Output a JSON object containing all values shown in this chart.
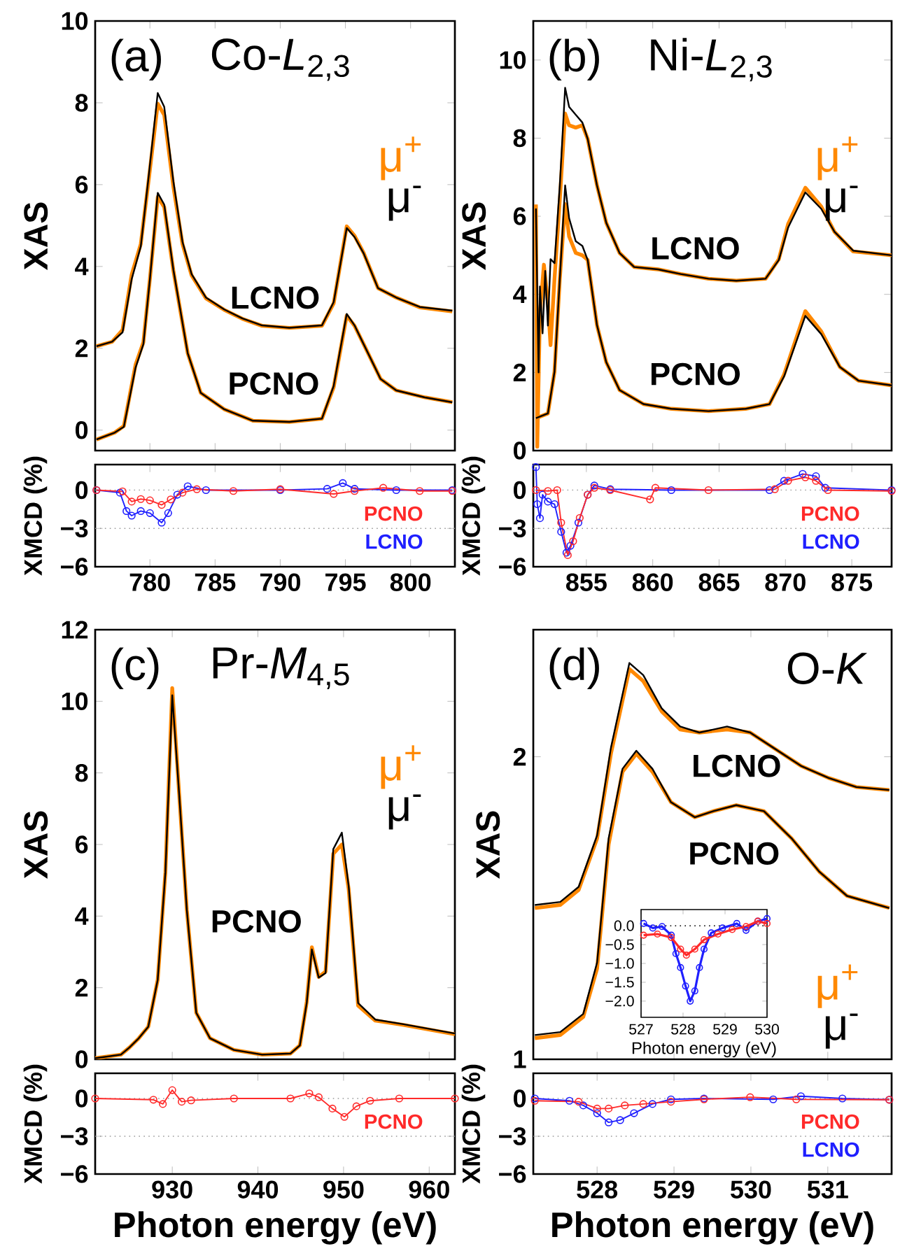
{
  "chart_data": [
    {
      "type": "line",
      "title": "Co-*L*$_{2,3}$",
      "ylabel": "XAS",
      "xlim": [
        775.8,
        803.4
      ],
      "ylim": [
        -0.5,
        10
      ],
      "xticks": [
        780,
        785,
        790,
        795,
        800
      ],
      "yticks": [
        0,
        2,
        4,
        6,
        8,
        10
      ],
      "tick_labels": "y",
      "legend": "right",
      "annotations": [
        "(a)",
        "LCNO",
        "PCNO"
      ],
      "series": [
        {
          "name": "μ$^{+}$",
          "color": "#ff8800",
          "x": [
            775.9,
            777.1,
            777.9,
            778.6,
            779.3,
            779.9,
            780.6,
            781.1,
            781.8,
            782.5,
            783.2,
            784.3,
            785.7,
            787.1,
            788.6,
            790.7,
            793.2,
            794.1,
            795.1,
            795.7,
            796.4,
            797.5,
            798.9,
            800.7,
            803.2
          ],
          "values": [
            2.05,
            2.16,
            2.45,
            3.8,
            4.55,
            6.1,
            7.98,
            7.7,
            5.95,
            4.55,
            3.78,
            3.22,
            2.94,
            2.72,
            2.55,
            2.5,
            2.55,
            3.1,
            4.98,
            4.75,
            4.33,
            3.47,
            3.24,
            3.0,
            2.9
          ]
        },
        {
          "name": "μ$^{-}$",
          "color": "#000000",
          "x": [
            775.9,
            777.1,
            777.9,
            778.6,
            779.3,
            779.9,
            780.6,
            781.1,
            781.8,
            782.5,
            783.2,
            784.3,
            785.7,
            787.1,
            788.6,
            790.7,
            793.2,
            794.1,
            795.1,
            795.7,
            796.4,
            797.5,
            798.9,
            800.7,
            803.2
          ],
          "values": [
            2.05,
            2.16,
            2.39,
            3.69,
            4.49,
            6.19,
            8.24,
            7.9,
            6.08,
            4.6,
            3.81,
            3.24,
            2.95,
            2.73,
            2.56,
            2.5,
            2.56,
            3.13,
            4.94,
            4.72,
            4.32,
            3.47,
            3.24,
            3.01,
            2.92
          ]
        },
        {
          "color": "#ff8800",
          "x": [
            775.9,
            777.3,
            778.0,
            778.9,
            779.5,
            780.0,
            780.6,
            781.1,
            781.8,
            782.9,
            783.9,
            785.7,
            787.9,
            790.7,
            793.2,
            794.1,
            795.1,
            795.7,
            796.4,
            797.7,
            798.9,
            801.1,
            803.2
          ],
          "values": [
            -0.23,
            -0.06,
            0.1,
            1.6,
            2.15,
            3.7,
            5.7,
            5.45,
            3.9,
            1.88,
            0.91,
            0.51,
            0.23,
            0.2,
            0.28,
            1.05,
            2.8,
            2.55,
            2.1,
            1.25,
            0.97,
            0.8,
            0.68
          ]
        },
        {
          "color": "#000000",
          "x": [
            775.9,
            777.3,
            778.0,
            778.9,
            779.5,
            780.0,
            780.6,
            781.1,
            781.8,
            782.9,
            783.9,
            785.7,
            787.9,
            790.7,
            793.2,
            794.1,
            795.1,
            795.7,
            796.4,
            797.7,
            798.9,
            801.1,
            803.2
          ],
          "values": [
            -0.23,
            -0.06,
            0.08,
            1.53,
            2.1,
            3.69,
            5.8,
            5.51,
            3.92,
            1.88,
            0.91,
            0.51,
            0.23,
            0.2,
            0.28,
            1.08,
            2.84,
            2.56,
            2.1,
            1.25,
            0.97,
            0.8,
            0.68
          ]
        }
      ]
    },
    {
      "type": "line",
      "ylabel": "XMCD (%)",
      "xlim": [
        775.8,
        803.4
      ],
      "ylim": [
        -6,
        2
      ],
      "xticks": [
        780,
        785,
        790,
        795,
        800
      ],
      "yticks": [
        0,
        {
          "value": -3,
          "label": "−3"
        },
        {
          "value": -6,
          "label": "−6"
        }
      ],
      "legend": "right",
      "marker": "circle",
      "ref_lines": [
        {
          "axis": "y",
          "value": 0,
          "color": "#999999",
          "line_style": "dotted"
        },
        {
          "axis": "y",
          "value": -3,
          "color": "#999999",
          "line_style": "dotted"
        }
      ],
      "series": [
        {
          "name": "PCNO",
          "color": "#ff2a2a",
          "x": [
            775.9,
            777.9,
            778.6,
            779.3,
            780.0,
            780.9,
            781.6,
            782.5,
            783.6,
            786.4,
            790.0,
            794.1,
            795.7,
            797.9,
            800.7,
            803.2
          ],
          "values": [
            0,
            -0.1,
            -0.9,
            -0.7,
            -0.8,
            -1.16,
            -0.73,
            -0.2,
            0.07,
            -0.07,
            0.07,
            -0.3,
            -0.07,
            0.18,
            -0.07,
            -0.07
          ]
        },
        {
          "name": "LCNO",
          "color": "#1f1fff",
          "x": [
            775.9,
            777.7,
            778.2,
            778.6,
            779.3,
            780.0,
            780.9,
            781.4,
            782.1,
            782.9,
            784.3,
            790.0,
            793.6,
            794.8,
            795.7,
            798.9,
            803.2
          ],
          "values": [
            0,
            -0.2,
            -1.64,
            -2.0,
            -1.64,
            -1.8,
            -2.55,
            -1.8,
            -0.36,
            0.3,
            0,
            0,
            0.1,
            0.55,
            0.1,
            0,
            0
          ]
        }
      ]
    },
    {
      "type": "line",
      "title": "Ni-*L*$_{2,3}$",
      "ylabel": "XAS",
      "xlim": [
        851,
        878
      ],
      "ylim": [
        0,
        11
      ],
      "xticks": [
        855,
        860,
        865,
        870,
        875
      ],
      "yticks": [
        0,
        2,
        4,
        6,
        8,
        10
      ],
      "tick_labels": "y",
      "legend": "right",
      "annotations": [
        "(b)",
        "LCNO",
        "PCNO"
      ],
      "series": [
        {
          "name": "μ$^{+}$",
          "color": "#ff8800",
          "x": [
            851.2,
            851.3,
            851.5,
            851.8,
            852.1,
            852.3,
            852.6,
            853.0,
            853.4,
            853.7,
            854.2,
            854.7,
            855.1,
            855.8,
            856.5,
            857.5,
            858.6,
            860.4,
            862.1,
            864.2,
            866.3,
            868.5,
            869.5,
            870.2,
            871.5,
            872.7,
            873.7,
            875.1,
            878.0
          ],
          "values": [
            6.3,
            0.1,
            3.5,
            4.76,
            3.8,
            2.7,
            4.4,
            6.43,
            8.63,
            8.33,
            8.27,
            8.33,
            7.98,
            6.79,
            5.83,
            5.06,
            4.7,
            4.64,
            4.52,
            4.4,
            4.35,
            4.4,
            4.9,
            5.8,
            6.73,
            6.25,
            5.6,
            5.1,
            5.0
          ]
        },
        {
          "name": "μ$^{-}$",
          "color": "#000000",
          "x": [
            851.2,
            851.4,
            851.5,
            851.7,
            851.9,
            852.1,
            852.3,
            852.6,
            853.0,
            853.4,
            853.7,
            854.2,
            854.7,
            855.1,
            855.8,
            856.5,
            857.5,
            858.6,
            860.4,
            862.1,
            864.2,
            866.3,
            868.5,
            869.5,
            870.2,
            871.5,
            872.7,
            873.7,
            875.1,
            878.0
          ],
          "values": [
            6.2,
            2.0,
            4.2,
            3.0,
            4.6,
            3.2,
            4.9,
            4.8,
            6.8,
            9.29,
            8.8,
            8.6,
            8.4,
            7.98,
            6.79,
            5.83,
            5.06,
            4.7,
            4.64,
            4.52,
            4.4,
            4.35,
            4.4,
            4.88,
            5.71,
            6.61,
            6.19,
            5.6,
            5.12,
            5.0
          ]
        },
        {
          "color": "#ff8800",
          "x": [
            851.2,
            852.1,
            852.6,
            853.0,
            853.4,
            853.7,
            854.2,
            854.7,
            855.1,
            855.8,
            856.5,
            857.5,
            859.3,
            861.4,
            864.2,
            867.0,
            868.8,
            869.9,
            871.5,
            872.7,
            874.1,
            875.5,
            878.0
          ],
          "values": [
            0.83,
            0.95,
            2.02,
            4.4,
            6.31,
            5.48,
            5.06,
            5.0,
            4.88,
            3.21,
            2.26,
            1.55,
            1.19,
            1.07,
            1.01,
            1.07,
            1.19,
            1.95,
            3.57,
            3.05,
            2.14,
            1.79,
            1.67
          ]
        },
        {
          "color": "#000000",
          "x": [
            851.2,
            852.1,
            852.6,
            853.0,
            853.4,
            853.7,
            854.2,
            854.7,
            855.1,
            855.8,
            856.5,
            857.5,
            859.3,
            861.4,
            864.2,
            867.0,
            868.8,
            869.9,
            871.5,
            872.7,
            874.1,
            875.5,
            878.0
          ],
          "values": [
            0.83,
            0.95,
            2.02,
            4.4,
            6.79,
            5.95,
            5.36,
            5.24,
            4.88,
            3.21,
            2.26,
            1.55,
            1.19,
            1.07,
            1.01,
            1.07,
            1.19,
            1.9,
            3.45,
            2.98,
            2.14,
            1.79,
            1.67
          ]
        }
      ]
    },
    {
      "type": "line",
      "ylabel": "XMCD (%)",
      "xlim": [
        851,
        878
      ],
      "ylim": [
        -6,
        2
      ],
      "xticks": [
        855,
        860,
        865,
        870,
        875
      ],
      "yticks": [
        0,
        {
          "value": -3,
          "label": "−3"
        },
        {
          "value": -6,
          "label": "−6"
        }
      ],
      "legend": "right",
      "marker": "circle",
      "ref_lines": [
        {
          "axis": "y",
          "value": 0,
          "color": "#999999",
          "line_style": "dotted"
        },
        {
          "axis": "y",
          "value": -3,
          "color": "#999999",
          "line_style": "dotted"
        }
      ],
      "series": [
        {
          "name": "PCNO",
          "color": "#ff2a2a",
          "x": [
            851.2,
            852.1,
            852.8,
            853.1,
            853.6,
            854.0,
            854.5,
            855.1,
            855.6,
            856.8,
            859.8,
            860.2,
            864.2,
            869.2,
            870.2,
            871.5,
            872.3,
            873.2,
            878.0
          ],
          "values": [
            0,
            -0.07,
            0,
            -2.55,
            -5.09,
            -4.0,
            -2.18,
            -0.36,
            0.18,
            0,
            -0.73,
            0.18,
            0,
            0.07,
            0.73,
            1.0,
            0.73,
            0,
            -0.07
          ]
        },
        {
          "name": "LCNO",
          "color": "#1f1fff",
          "x": [
            851.2,
            851.3,
            851.5,
            851.7,
            852.1,
            852.6,
            853.1,
            853.5,
            853.8,
            854.4,
            855.1,
            855.6,
            856.8,
            861.4,
            868.8,
            869.9,
            871.3,
            872.3,
            873.0,
            878.0
          ],
          "values": [
            1.8,
            -1.1,
            -2.2,
            -0.36,
            -0.9,
            -1.1,
            -3.27,
            -4.9,
            -4.36,
            -2.55,
            -0.36,
            0.36,
            0.07,
            0,
            0,
            0.73,
            1.27,
            1.09,
            0.18,
            0
          ]
        }
      ]
    },
    {
      "type": "line",
      "title": "Pr-*M*$_{4,5}$",
      "ylabel": "XAS",
      "xlim": [
        921,
        963
      ],
      "ylim": [
        0,
        12
      ],
      "xticks": [
        930,
        940,
        950,
        960
      ],
      "yticks": [
        0,
        2,
        4,
        6,
        8,
        10,
        12
      ],
      "tick_labels": "y",
      "legend": "right",
      "annotations": [
        "(c)",
        "PCNO"
      ],
      "series": [
        {
          "name": "μ$^{+}$",
          "color": "#ff8800",
          "x": [
            921.0,
            924.0,
            925.0,
            926.1,
            927.2,
            928.3,
            929.2,
            930.0,
            930.8,
            931.7,
            932.8,
            934.4,
            937.2,
            940.5,
            943.8,
            944.9,
            945.7,
            946.3,
            947.1,
            947.9,
            948.8,
            949.8,
            950.6,
            951.7,
            953.7,
            957.0,
            963.0
          ],
          "values": [
            0.03,
            0.13,
            0.33,
            0.59,
            0.91,
            2.22,
            5.22,
            10.37,
            7.43,
            4.17,
            1.3,
            0.59,
            0.26,
            0.13,
            0.16,
            0.39,
            1.6,
            3.13,
            2.3,
            2.45,
            5.74,
            6.0,
            4.75,
            1.5,
            1.08,
            0.96,
            0.7
          ]
        },
        {
          "name": "μ$^{-}$",
          "color": "#000000",
          "x": [
            921.0,
            924.0,
            925.0,
            926.1,
            927.2,
            928.3,
            929.2,
            930.0,
            930.8,
            931.7,
            932.8,
            934.4,
            937.2,
            940.5,
            943.8,
            944.9,
            945.7,
            946.3,
            947.1,
            947.9,
            948.8,
            949.8,
            950.6,
            951.7,
            953.7,
            957.0,
            963.0
          ],
          "values": [
            0.03,
            0.13,
            0.33,
            0.59,
            0.91,
            2.22,
            5.22,
            10.17,
            7.43,
            4.17,
            1.3,
            0.59,
            0.26,
            0.13,
            0.16,
            0.39,
            1.57,
            3.07,
            2.28,
            2.41,
            5.87,
            6.33,
            4.83,
            1.57,
            1.11,
            0.98,
            0.72
          ]
        }
      ]
    },
    {
      "type": "line",
      "ylabel": "XMCD (%)",
      "xlabel": "Photon energy (eV)",
      "xlim": [
        921,
        963
      ],
      "ylim": [
        -6,
        2
      ],
      "xticks": [
        930,
        940,
        950,
        960
      ],
      "yticks": [
        0,
        {
          "value": -3,
          "label": "−3"
        },
        {
          "value": -6,
          "label": "−6"
        }
      ],
      "legend": "right",
      "marker": "circle",
      "ref_lines": [
        {
          "axis": "y",
          "value": 0,
          "color": "#999999",
          "line_style": "dotted"
        },
        {
          "axis": "y",
          "value": -3,
          "color": "#999999",
          "line_style": "dotted"
        }
      ],
      "series": [
        {
          "name": "PCNO",
          "color": "#ff2a2a",
          "x": [
            921.0,
            927.8,
            928.9,
            930.0,
            931.1,
            932.2,
            937.2,
            943.8,
            946.0,
            947.1,
            948.7,
            950.1,
            951.5,
            953.1,
            956.5,
            963.0
          ],
          "values": [
            0,
            -0.1,
            -0.44,
            0.66,
            -0.26,
            -0.15,
            0,
            0,
            0.4,
            0.1,
            -0.8,
            -1.46,
            -0.62,
            -0.18,
            0,
            0
          ]
        }
      ]
    },
    {
      "type": "line",
      "title": "O-*K*",
      "ylabel": "XAS",
      "xlim": [
        527.17,
        531.83
      ],
      "ylim": [
        1,
        2.42
      ],
      "xticks": [
        528,
        529,
        530,
        531
      ],
      "yticks": [
        1,
        2
      ],
      "tick_labels": "y",
      "legend": "bottom right",
      "annotations": [
        "(d)",
        "LCNO",
        "PCNO"
      ],
      "series": [
        {
          "name": "μ$^{+}$",
          "color": "#ff8800",
          "x": [
            527.19,
            527.52,
            527.76,
            528.0,
            528.18,
            528.42,
            528.6,
            528.84,
            529.08,
            529.33,
            529.69,
            529.99,
            530.29,
            530.65,
            531.01,
            531.37,
            531.8
          ],
          "values": [
            1.5,
            1.51,
            1.56,
            1.73,
            2.01,
            2.29,
            2.25,
            2.15,
            2.09,
            2.08,
            2.09,
            2.08,
            2.03,
            1.97,
            1.93,
            1.9,
            1.89
          ]
        },
        {
          "name": "μ$^{-}$",
          "color": "#000000",
          "x": [
            527.19,
            527.52,
            527.76,
            528.0,
            528.18,
            528.42,
            528.6,
            528.84,
            529.08,
            529.33,
            529.69,
            529.99,
            530.29,
            530.65,
            531.01,
            531.37,
            531.8
          ],
          "values": [
            1.51,
            1.52,
            1.57,
            1.74,
            2.03,
            2.31,
            2.27,
            2.16,
            2.1,
            2.08,
            2.1,
            2.08,
            2.03,
            1.97,
            1.93,
            1.9,
            1.89
          ]
        },
        {
          "color": "#ff8800",
          "x": [
            527.19,
            527.52,
            527.82,
            528.0,
            528.15,
            528.33,
            528.51,
            528.72,
            528.96,
            529.27,
            529.51,
            529.81,
            530.17,
            530.53,
            530.89,
            531.25,
            531.8
          ],
          "values": [
            1.07,
            1.08,
            1.14,
            1.3,
            1.71,
            1.95,
            2.01,
            1.95,
            1.85,
            1.8,
            1.82,
            1.84,
            1.82,
            1.73,
            1.62,
            1.54,
            1.5
          ]
        },
        {
          "color": "#000000",
          "x": [
            527.19,
            527.52,
            527.82,
            528.0,
            528.15,
            528.33,
            528.51,
            528.72,
            528.96,
            529.27,
            529.51,
            529.81,
            530.17,
            530.53,
            530.89,
            531.25,
            531.8
          ],
          "values": [
            1.08,
            1.09,
            1.15,
            1.32,
            1.73,
            1.96,
            2.02,
            1.96,
            1.85,
            1.8,
            1.82,
            1.84,
            1.82,
            1.73,
            1.62,
            1.54,
            1.5
          ]
        }
      ]
    },
    {
      "type": "line",
      "ylabel": "XMCD (%)",
      "xlabel": "Photon energy (eV)",
      "xlim": [
        527.17,
        531.83
      ],
      "ylim": [
        -6,
        2
      ],
      "xticks": [
        528,
        529,
        530,
        531
      ],
      "yticks": [
        0,
        {
          "value": -3,
          "label": "−3"
        },
        {
          "value": -6,
          "label": "−6"
        }
      ],
      "legend": "right",
      "marker": "circle",
      "ref_lines": [
        {
          "axis": "y",
          "value": 0,
          "color": "#999999",
          "line_style": "dotted"
        },
        {
          "axis": "y",
          "value": -3,
          "color": "#999999",
          "line_style": "dotted"
        }
      ],
      "series": [
        {
          "name": "PCNO",
          "color": "#ff2a2a",
          "x": [
            527.19,
            527.76,
            528.0,
            528.15,
            528.36,
            528.6,
            528.96,
            529.39,
            529.99,
            530.59,
            531.8
          ],
          "values": [
            -0.18,
            -0.26,
            -0.8,
            -0.8,
            -0.55,
            -0.44,
            -0.26,
            -0.07,
            0.1,
            -0.07,
            -0.1
          ]
        },
        {
          "name": "LCNO",
          "color": "#1f1fff",
          "x": [
            527.19,
            527.64,
            527.82,
            528.0,
            528.15,
            528.3,
            528.48,
            528.72,
            528.96,
            529.39,
            530.29,
            530.65,
            531.19,
            531.8
          ],
          "values": [
            0,
            -0.18,
            -0.55,
            -1.17,
            -1.9,
            -1.72,
            -1.17,
            -0.44,
            -0.07,
            0,
            -0.07,
            0.18,
            0,
            -0.1
          ]
        }
      ]
    },
    {
      "type": "line",
      "xlabel": "Photon energy (eV)",
      "xlim": [
        527,
        530
      ],
      "ylim": [
        -2.43,
        0.43
      ],
      "xticks": [
        527,
        528,
        529,
        530
      ],
      "yticks": [
        {
          "value": 0,
          "label": "0.0"
        },
        {
          "value": -0.5,
          "label": "−0.5"
        },
        {
          "value": -1,
          "label": "−1.0"
        },
        {
          "value": -1.5,
          "label": "−1.5"
        },
        {
          "value": -2,
          "label": "−2.0"
        }
      ],
      "marker": "circle",
      "ref_lines": [
        {
          "axis": "y",
          "value": 0,
          "color": "#000000",
          "line_style": "dotted"
        }
      ],
      "series": [
        {
          "color": "#ff2a2a",
          "x": [
            527.06,
            527.39,
            527.72,
            527.94,
            528.08,
            528.28,
            528.5,
            528.83,
            529.17,
            529.5,
            529.78,
            530.0
          ],
          "values": [
            -0.25,
            -0.22,
            -0.31,
            -0.62,
            -0.78,
            -0.62,
            -0.37,
            -0.22,
            -0.1,
            -0.02,
            0.12,
            0.06
          ]
        },
        {
          "color": "#1f1fff",
          "x": [
            527.06,
            527.28,
            527.5,
            527.72,
            527.83,
            527.94,
            528.06,
            528.17,
            528.28,
            528.39,
            528.5,
            528.67,
            528.94,
            529.28,
            529.5,
            529.78,
            530.0
          ],
          "values": [
            0.06,
            -0.06,
            -0.02,
            -0.25,
            -0.74,
            -1.11,
            -1.6,
            -2.0,
            -1.73,
            -1.11,
            -0.62,
            -0.19,
            -0.06,
            0.06,
            -0.12,
            0.12,
            0.19
          ]
        }
      ]
    }
  ]
}
